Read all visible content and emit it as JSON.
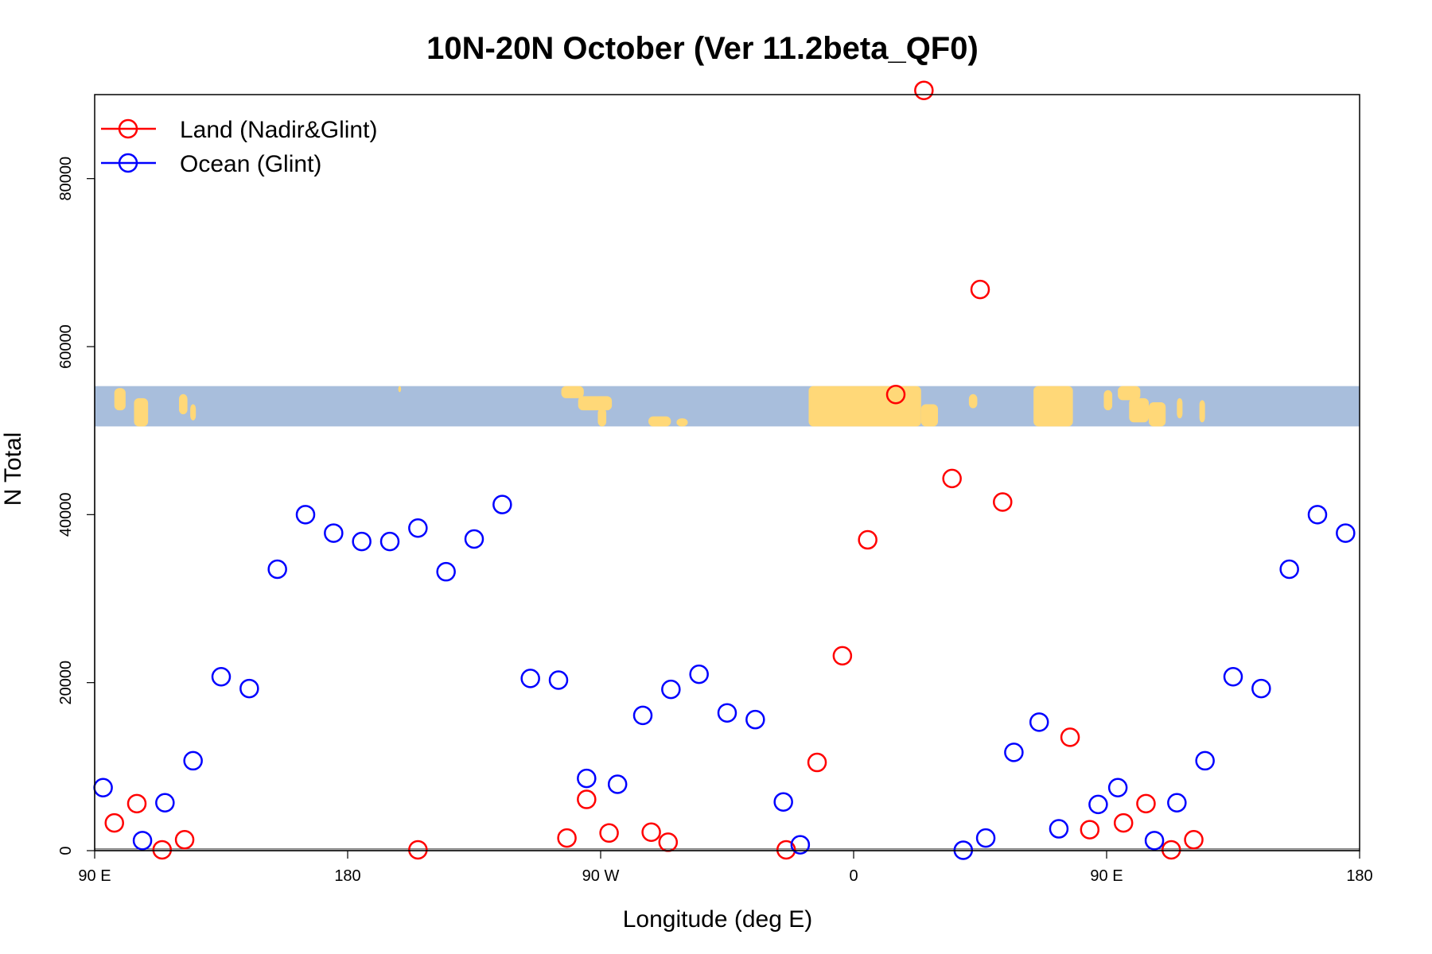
{
  "chart_data": {
    "type": "scatter",
    "title": "10N-20N October (Ver 11.2beta_QF0)",
    "xlabel": "Longitude (deg E)",
    "ylabel": "N Total",
    "xlim": [
      0,
      450
    ],
    "ylim": [
      0,
      90000
    ],
    "x_ticks": [
      {
        "value": 0,
        "label": "90 E"
      },
      {
        "value": 90,
        "label": "180"
      },
      {
        "value": 180,
        "label": "90 W"
      },
      {
        "value": 270,
        "label": "0"
      },
      {
        "value": 360,
        "label": "90 E"
      },
      {
        "value": 450,
        "label": "180"
      }
    ],
    "y_ticks": [
      {
        "value": 0,
        "label": "0"
      },
      {
        "value": 20000,
        "label": "20000"
      },
      {
        "value": 40000,
        "label": "40000"
      },
      {
        "value": 60000,
        "label": "60000"
      },
      {
        "value": 80000,
        "label": "80000"
      }
    ],
    "reference_line_y": 200,
    "map_strip_range": [
      50500,
      55300
    ],
    "legend": {
      "position": "top-left"
    },
    "series": [
      {
        "name": "Land (Nadir&Glint)",
        "color": "#ff0000",
        "points": [
          {
            "x": 7,
            "y": 3300
          },
          {
            "x": 15,
            "y": 5600
          },
          {
            "x": 24,
            "y": 100
          },
          {
            "x": 32,
            "y": 1300
          },
          {
            "x": 115,
            "y": 100
          },
          {
            "x": 168,
            "y": 1500
          },
          {
            "x": 175,
            "y": 6100
          },
          {
            "x": 183,
            "y": 2100
          },
          {
            "x": 198,
            "y": 2200
          },
          {
            "x": 204,
            "y": 1000
          },
          {
            "x": 246,
            "y": 100
          },
          {
            "x": 257,
            "y": 10500
          },
          {
            "x": 266,
            "y": 23200
          },
          {
            "x": 275,
            "y": 37000
          },
          {
            "x": 285,
            "y": 54300
          },
          {
            "x": 295,
            "y": 90500
          },
          {
            "x": 305,
            "y": 44300
          },
          {
            "x": 315,
            "y": 66800
          },
          {
            "x": 323,
            "y": 41500
          },
          {
            "x": 347,
            "y": 13500
          },
          {
            "x": 354,
            "y": 2500
          },
          {
            "x": 366,
            "y": 3300
          },
          {
            "x": 374,
            "y": 5600
          },
          {
            "x": 383,
            "y": 100
          },
          {
            "x": 391,
            "y": 1300
          }
        ]
      },
      {
        "name": "Ocean (Glint)",
        "color": "#0000ff",
        "points": [
          {
            "x": 3,
            "y": 7500
          },
          {
            "x": 17,
            "y": 1200
          },
          {
            "x": 25,
            "y": 5700
          },
          {
            "x": 35,
            "y": 10700
          },
          {
            "x": 45,
            "y": 20700
          },
          {
            "x": 55,
            "y": 19300
          },
          {
            "x": 65,
            "y": 33500
          },
          {
            "x": 75,
            "y": 40000
          },
          {
            "x": 85,
            "y": 37800
          },
          {
            "x": 95,
            "y": 36800
          },
          {
            "x": 105,
            "y": 36800
          },
          {
            "x": 115,
            "y": 38400
          },
          {
            "x": 125,
            "y": 33200
          },
          {
            "x": 135,
            "y": 37100
          },
          {
            "x": 145,
            "y": 41200
          },
          {
            "x": 155,
            "y": 20500
          },
          {
            "x": 165,
            "y": 20300
          },
          {
            "x": 175,
            "y": 8600
          },
          {
            "x": 186,
            "y": 7900
          },
          {
            "x": 195,
            "y": 16100
          },
          {
            "x": 205,
            "y": 19200
          },
          {
            "x": 215,
            "y": 21000
          },
          {
            "x": 225,
            "y": 16400
          },
          {
            "x": 235,
            "y": 15600
          },
          {
            "x": 245,
            "y": 5800
          },
          {
            "x": 251,
            "y": 700
          },
          {
            "x": 309,
            "y": 50
          },
          {
            "x": 317,
            "y": 1500
          },
          {
            "x": 327,
            "y": 11700
          },
          {
            "x": 336,
            "y": 15300
          },
          {
            "x": 343,
            "y": 2600
          },
          {
            "x": 357,
            "y": 5500
          },
          {
            "x": 364,
            "y": 7500
          },
          {
            "x": 377,
            "y": 1200
          },
          {
            "x": 385,
            "y": 5700
          },
          {
            "x": 395,
            "y": 10700
          },
          {
            "x": 405,
            "y": 20700
          },
          {
            "x": 415,
            "y": 19300
          },
          {
            "x": 425,
            "y": 33500
          },
          {
            "x": 435,
            "y": 40000
          },
          {
            "x": 445,
            "y": 37800
          }
        ]
      }
    ]
  }
}
